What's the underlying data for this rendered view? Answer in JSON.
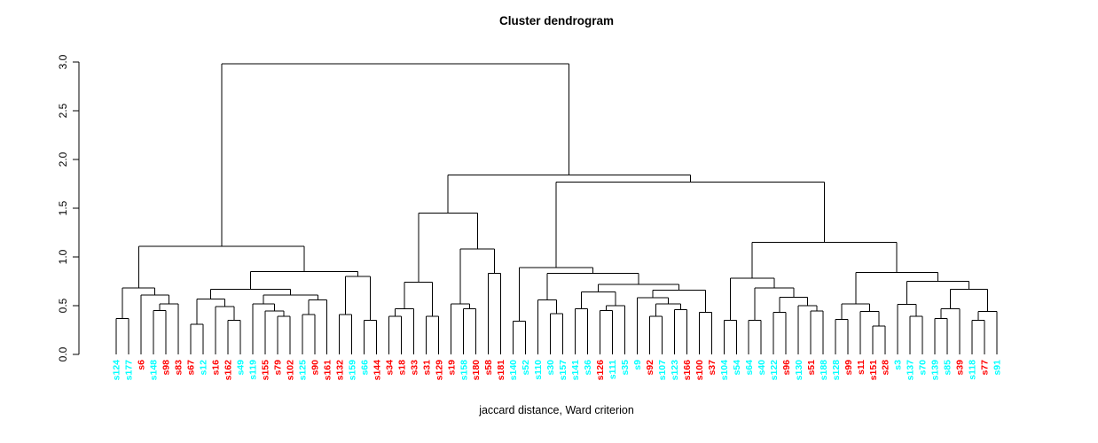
{
  "chart_data": {
    "type": "dendrogram",
    "title": "Cluster dendrogram",
    "xlabel": "jaccard distance, Ward criterion",
    "ylabel": "",
    "ylim": [
      0.0,
      3.0
    ],
    "yticks": [
      "0.0",
      "0.5",
      "1.0",
      "1.5",
      "2.0",
      "2.5",
      "3.0"
    ],
    "grid": false,
    "legend_position": "none",
    "leaf_colors": {
      "c": "#00FFFF",
      "r": "#FF0000"
    },
    "tree": [
      2.98,
      [
        1.11,
        [
          0.68,
          [
            0.37,
            [
              "s124",
              "c"
            ],
            [
              "s177",
              "c"
            ]
          ],
          [
            0.61,
            [
              "s6",
              "r"
            ],
            [
              0.52,
              [
                0.45,
                [
                  "s148",
                  "c"
                ],
                [
                  "s98",
                  "r"
                ]
              ],
              [
                "s83",
                "r"
              ]
            ]
          ]
        ],
        [
          0.85,
          [
            0.67,
            [
              0.57,
              [
                0.31,
                [
                  "s67",
                  "r"
                ],
                [
                  "s12",
                  "c"
                ]
              ],
              [
                0.49,
                [
                  "s16",
                  "r"
                ],
                [
                  0.35,
                  [
                    "s162",
                    "r"
                  ],
                  [
                    "s49",
                    "c"
                  ]
                ]
              ]
            ],
            [
              0.61,
              [
                0.52,
                [
                  "s119",
                  "c"
                ],
                [
                  0.445,
                  [
                    "s155",
                    "r"
                  ],
                  [
                    0.39,
                    [
                      "s79",
                      "r"
                    ],
                    [
                      "s102",
                      "r"
                    ]
                  ]
                ]
              ],
              [
                0.56,
                [
                  0.41,
                  [
                    "s125",
                    "c"
                  ],
                  [
                    "s90",
                    "r"
                  ]
                ],
                [
                  "s161",
                  "r"
                ]
              ]
            ]
          ],
          [
            0.8,
            [
              0.41,
              [
                "s132",
                "r"
              ],
              [
                "s159",
                "c"
              ]
            ],
            [
              0.35,
              [
                "s66",
                "c"
              ],
              [
                "s144",
                "r"
              ]
            ]
          ]
        ]
      ],
      [
        1.84,
        [
          1.45,
          [
            0.74,
            [
              0.47,
              [
                0.39,
                [
                  "s34",
                  "r"
                ],
                [
                  "s18",
                  "r"
                ]
              ],
              [
                "s33",
                "r"
              ]
            ],
            [
              0.39,
              [
                "s31",
                "r"
              ],
              [
                "s129",
                "r"
              ]
            ]
          ],
          [
            1.08,
            [
              0.52,
              [
                "s19",
                "r"
              ],
              [
                0.47,
                [
                  "s158",
                  "c"
                ],
                [
                  "s180",
                  "r"
                ]
              ]
            ],
            [
              0.83,
              [
                "s58",
                "r"
              ],
              [
                "s181",
                "r"
              ]
            ]
          ]
        ],
        [
          1.77,
          [
            0.89,
            [
              0.34,
              [
                "s140",
                "c"
              ],
              [
                "s52",
                "c"
              ]
            ],
            [
              0.83,
              [
                0.56,
                [
                  "s110",
                  "c"
                ],
                [
                  0.42,
                  [
                    "s30",
                    "c"
                  ],
                  [
                    "s157",
                    "c"
                  ]
                ]
              ],
              [
                0.72,
                [
                  0.64,
                  [
                    0.47,
                    [
                      "s141",
                      "c"
                    ],
                    [
                      "s36",
                      "c"
                    ]
                  ],
                  [
                    0.5,
                    [
                      0.45,
                      [
                        "s126",
                        "r"
                      ],
                      [
                        "s111",
                        "c"
                      ]
                    ],
                    [
                      "s35",
                      "c"
                    ]
                  ]
                ],
                [
                  0.66,
                  [
                    0.58,
                    [
                      "s9",
                      "c"
                    ],
                    [
                      0.52,
                      [
                        0.39,
                        [
                          "s92",
                          "r"
                        ],
                        [
                          "s107",
                          "c"
                        ]
                      ],
                      [
                        0.46,
                        [
                          "s123",
                          "c"
                        ],
                        [
                          "s166",
                          "r"
                        ]
                      ]
                    ]
                  ],
                  [
                    0.43,
                    [
                      "s100",
                      "r"
                    ],
                    [
                      "s37",
                      "r"
                    ]
                  ]
                ]
              ]
            ]
          ],
          [
            1.15,
            [
              0.78,
              [
                0.35,
                [
                  "s104",
                  "c"
                ],
                [
                  "s54",
                  "c"
                ]
              ],
              [
                0.68,
                [
                  0.35,
                  [
                    "s64",
                    "c"
                  ],
                  [
                    "s40",
                    "c"
                  ]
                ],
                [
                  0.585,
                  [
                    0.43,
                    [
                      "s122",
                      "c"
                    ],
                    [
                      "s96",
                      "r"
                    ]
                  ],
                  [
                    0.5,
                    [
                      "s130",
                      "c"
                    ],
                    [
                      0.445,
                      [
                        "s51",
                        "r"
                      ],
                      [
                        "s188",
                        "c"
                      ]
                    ]
                  ]
                ]
              ]
            ],
            [
              0.84,
              [
                0.52,
                [
                  0.36,
                  [
                    "s128",
                    "c"
                  ],
                  [
                    "s99",
                    "r"
                  ]
                ],
                [
                  0.44,
                  [
                    "s11",
                    "r"
                  ],
                  [
                    0.29,
                    [
                      "s151",
                      "r"
                    ],
                    [
                      "s28",
                      "r"
                    ]
                  ]
                ]
              ],
              [
                0.75,
                [
                  0.515,
                  [
                    "s3",
                    "c"
                  ],
                  [
                    0.39,
                    [
                      "s137",
                      "c"
                    ],
                    [
                      "s70",
                      "c"
                    ]
                  ]
                ],
                [
                  0.67,
                  [
                    0.47,
                    [
                      0.37,
                      [
                        "s139",
                        "c"
                      ],
                      [
                        "s85",
                        "c"
                      ]
                    ],
                    [
                      "s39",
                      "r"
                    ]
                  ],
                  [
                    0.44,
                    [
                      0.35,
                      [
                        "s118",
                        "c"
                      ],
                      [
                        "s77",
                        "r"
                      ]
                    ],
                    [
                      "s91",
                      "c"
                    ]
                  ]
                ]
              ]
            ]
          ]
        ]
      ]
    ]
  }
}
